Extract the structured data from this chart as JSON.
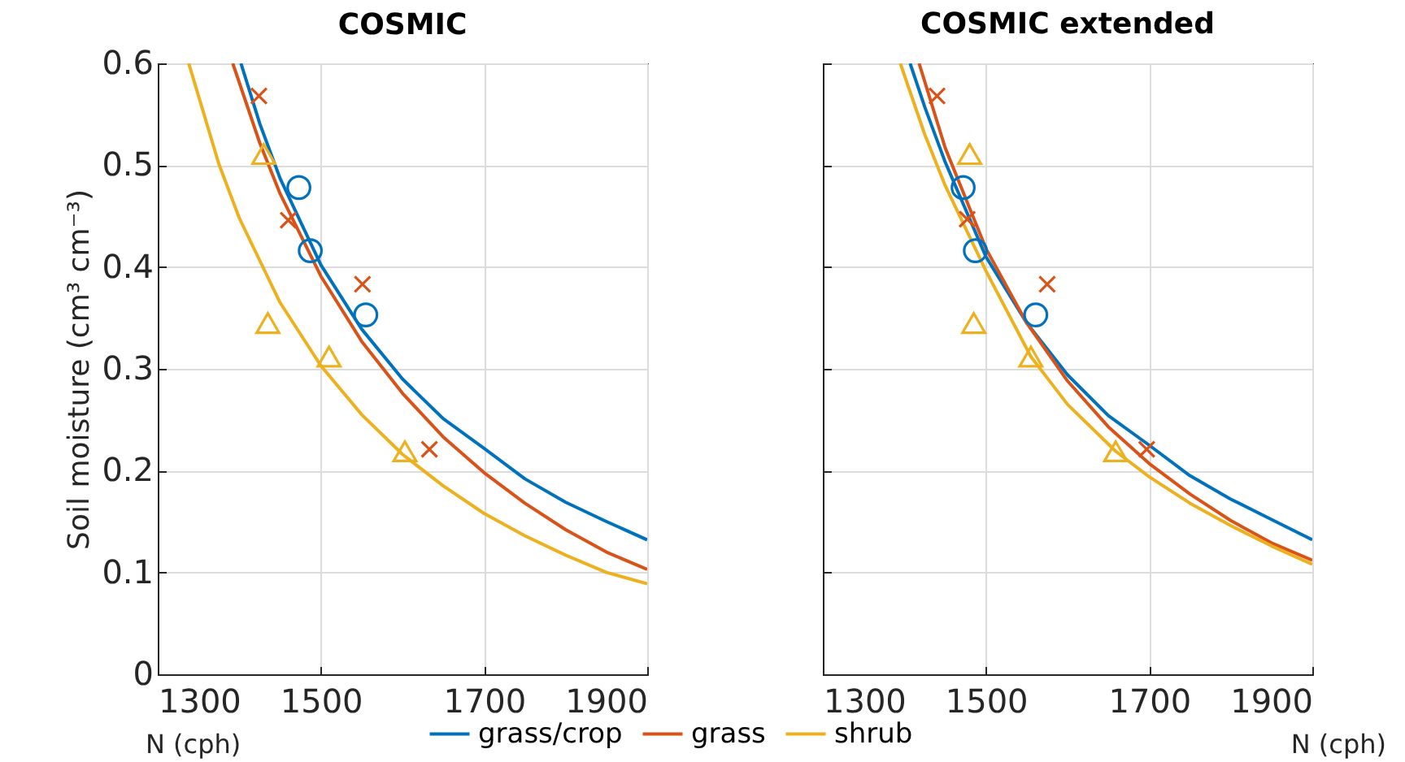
{
  "chart_data": [
    {
      "type": "line",
      "title": "COSMIC",
      "xlabel": "N (cph)",
      "ylabel": "Soil moisture (cm³ cm⁻³)",
      "xlim": [
        1300,
        1900
      ],
      "xticks": [
        1300,
        1500,
        1700,
        1900
      ],
      "ylim": [
        0,
        0.6
      ],
      "yticks": [
        0,
        0.1,
        0.2,
        0.3,
        0.4,
        0.5,
        0.6
      ],
      "grid": true,
      "legend": "bottom",
      "series": [
        {
          "name": "grass/crop",
          "color": "#0072bd",
          "x": [
            1402,
            1425,
            1450,
            1500,
            1550,
            1600,
            1650,
            1700,
            1750,
            1800,
            1850,
            1900
          ],
          "values": [
            0.6,
            0.541,
            0.487,
            0.402,
            0.339,
            0.29,
            0.251,
            0.222,
            0.192,
            0.169,
            0.15,
            0.132
          ]
        },
        {
          "name": "grass",
          "color": "#d95319",
          "x": [
            1392,
            1425,
            1450,
            1500,
            1550,
            1600,
            1650,
            1700,
            1750,
            1800,
            1850,
            1900
          ],
          "values": [
            0.6,
            0.522,
            0.472,
            0.391,
            0.327,
            0.276,
            0.233,
            0.198,
            0.168,
            0.142,
            0.12,
            0.103
          ]
        },
        {
          "name": "shrub",
          "color": "#edb120",
          "x": [
            1338,
            1375,
            1400,
            1450,
            1500,
            1550,
            1600,
            1650,
            1700,
            1750,
            1800,
            1850,
            1900
          ],
          "values": [
            0.6,
            0.501,
            0.448,
            0.365,
            0.303,
            0.255,
            0.216,
            0.185,
            0.158,
            0.136,
            0.117,
            0.1,
            0.089
          ]
        },
        {
          "type": "scatter",
          "marker": "circle",
          "color": "#0072bd",
          "x": [
            1473,
            1487,
            1555
          ],
          "values": [
            0.478,
            0.416,
            0.353
          ]
        },
        {
          "type": "scatter",
          "marker": "cross",
          "color": "#d95319",
          "x": [
            1424,
            1460,
            1551,
            1633
          ],
          "values": [
            0.568,
            0.446,
            0.383,
            0.221
          ]
        },
        {
          "type": "scatter",
          "marker": "triangle",
          "color": "#edb120",
          "x": [
            1430,
            1435,
            1510,
            1603
          ],
          "values": [
            0.511,
            0.345,
            0.312,
            0.219
          ]
        }
      ]
    },
    {
      "type": "line",
      "title": "COSMIC extended",
      "xlabel": "N (cph)",
      "xlim": [
        1300,
        1900
      ],
      "xticks": [
        1300,
        1500,
        1700,
        1900
      ],
      "ylim": [
        0,
        0.6
      ],
      "yticks": [
        0,
        0.1,
        0.2,
        0.3,
        0.4,
        0.5,
        0.6
      ],
      "grid": true,
      "tick_labels": "x",
      "series": [
        {
          "color": "#0072bd",
          "x": [
            1407,
            1425,
            1450,
            1500,
            1550,
            1600,
            1650,
            1700,
            1750,
            1800,
            1850,
            1900
          ],
          "values": [
            0.6,
            0.557,
            0.503,
            0.41,
            0.345,
            0.294,
            0.254,
            0.225,
            0.195,
            0.172,
            0.152,
            0.132
          ]
        },
        {
          "color": "#d95319",
          "x": [
            1418,
            1450,
            1500,
            1550,
            1600,
            1650,
            1700,
            1750,
            1800,
            1850,
            1900
          ],
          "values": [
            0.6,
            0.517,
            0.418,
            0.345,
            0.288,
            0.243,
            0.207,
            0.177,
            0.151,
            0.129,
            0.112
          ]
        },
        {
          "color": "#edb120",
          "x": [
            1395,
            1425,
            1450,
            1500,
            1555,
            1600,
            1659,
            1700,
            1750,
            1800,
            1850,
            1900
          ],
          "values": [
            0.6,
            0.53,
            0.48,
            0.396,
            0.312,
            0.265,
            0.219,
            0.194,
            0.168,
            0.146,
            0.126,
            0.108
          ]
        },
        {
          "type": "scatter",
          "marker": "circle",
          "color": "#0072bd",
          "x": [
            1472,
            1487,
            1561
          ],
          "values": [
            0.478,
            0.416,
            0.353
          ]
        },
        {
          "type": "scatter",
          "marker": "cross",
          "color": "#d95319",
          "x": [
            1440,
            1477,
            1575,
            1697
          ],
          "values": [
            0.568,
            0.447,
            0.383,
            0.221
          ]
        },
        {
          "type": "scatter",
          "marker": "triangle",
          "color": "#edb120",
          "x": [
            1480,
            1485,
            1555,
            1659
          ],
          "values": [
            0.511,
            0.345,
            0.312,
            0.219
          ]
        }
      ]
    }
  ]
}
